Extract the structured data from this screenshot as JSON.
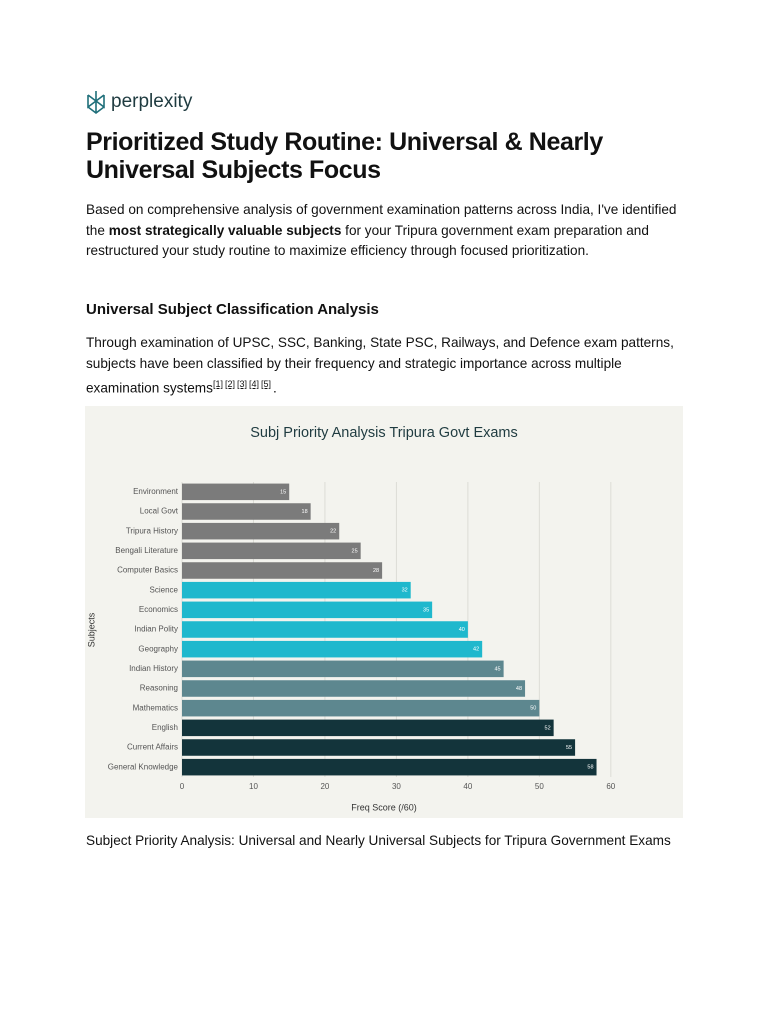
{
  "brand": "perplexity",
  "title": "Prioritized Study Routine: Universal & Nearly Universal Subjects Focus",
  "intro": {
    "before": "Based on comprehensive analysis of government examination patterns across India, I've identified the ",
    "bold": "most strategically valuable subjects",
    "after": " for your Tripura government exam preparation and restructured your study routine to maximize efficiency through focused prioritization."
  },
  "section": {
    "heading": "Universal Subject Classification Analysis",
    "text": "Through examination of UPSC, SSC, Banking, State PSC, Railways, and Defence exam patterns, subjects have been classified by their frequency and strategic importance across multiple examination systems",
    "citations": [
      "[1]",
      "[2]",
      "[3]",
      "[4]",
      "[5]"
    ],
    "end": "."
  },
  "chart_data": {
    "type": "hbar",
    "title": "Subj Priority Analysis Tripura Govt Exams",
    "xlabel": "Freq Score (/60)",
    "ylabel": "Subjects",
    "categories": [
      "Environment",
      "Local Govt",
      "Tripura History",
      "Bengali Literature",
      "Computer Basics",
      "Science",
      "Economics",
      "Indian Polity",
      "Geography",
      "Indian History",
      "Reasoning",
      "Mathematics",
      "English",
      "Current Affairs",
      "General Knowledge"
    ],
    "values": [
      15,
      18,
      22,
      25,
      28,
      32,
      35,
      40,
      42,
      45,
      48,
      50,
      52,
      55,
      58
    ],
    "colors": [
      "#7b7b7b",
      "#7b7b7b",
      "#7b7b7b",
      "#7b7b7b",
      "#7b7b7b",
      "#1fb8cd",
      "#1fb8cd",
      "#1fb8cd",
      "#1fb8cd",
      "#5d878f",
      "#5d878f",
      "#5d878f",
      "#13343b",
      "#13343b",
      "#13343b"
    ],
    "xlim": [
      0,
      68
    ],
    "xticks": [
      0,
      10,
      20,
      30,
      40,
      50,
      60
    ],
    "grid": true
  },
  "caption": "Subject Priority Analysis: Universal and Nearly Universal Subjects for Tripura Government Exams"
}
